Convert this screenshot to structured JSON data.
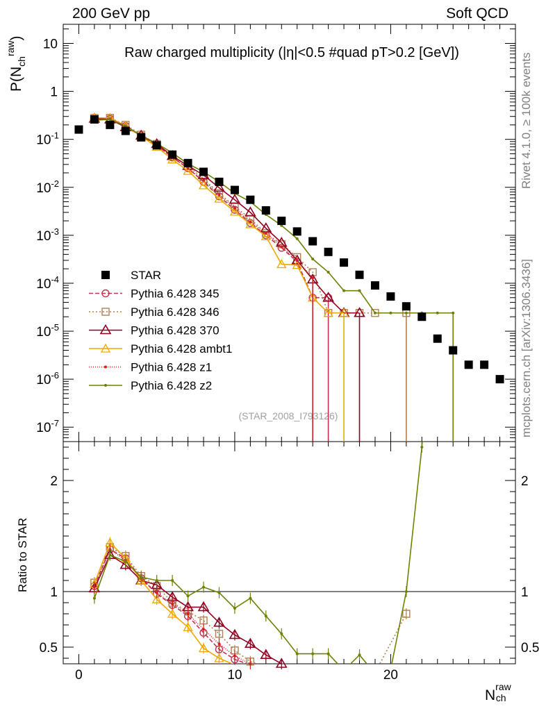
{
  "header": {
    "left": "200 GeV pp",
    "right": "Soft QCD"
  },
  "plot_title": "Raw charged multiplicity (|η|<0.5 #quad pT>0.2 [GeV])",
  "side_text": {
    "rivet": "Rivet 4.1.0, ≥ 100k events",
    "mcplots": "mcplots.cern.ch [arXiv:1306.3436]"
  },
  "watermark": "(STAR_2008_I793126)",
  "axis_labels": {
    "y_main_base": "P(N",
    "y_main_sup": "raw",
    "y_main_sub": "ch",
    "y_main_close": ")",
    "y_ratio": "Ratio to STAR",
    "x_base": "N",
    "x_sup": "raw",
    "x_sub": "ch"
  },
  "colors": {
    "star": "#000000",
    "p345": "#c03050",
    "p346": "#b08050",
    "p370": "#900020",
    "ambt1": "#f0a800",
    "z1": "#d02020",
    "z2": "#708000"
  },
  "chart_data": {
    "type": "scatter",
    "title": "Raw charged multiplicity (|η|<0.5 #quad pT>0.2 [GeV])",
    "xlabel": "N_ch^raw",
    "ylabel": "P(N_ch^raw)",
    "ratio_ylabel": "Ratio to STAR",
    "xlim": [
      -1,
      28
    ],
    "ylim": [
      5e-08,
      25
    ],
    "ratio_ylim": [
      0.35,
      2.35
    ],
    "yscale": "log",
    "legend_position": "left-middle",
    "x_ticks": [
      "0",
      "10",
      "20"
    ],
    "y_ticks": [
      "10",
      "1",
      "10^-1",
      "10^-2",
      "10^-3",
      "10^-4",
      "10^-5",
      "10^-6",
      "10^-7"
    ],
    "ratio_ticks": [
      "0.5",
      "1",
      "2"
    ],
    "star": {
      "name": "STAR",
      "x": [
        0,
        1,
        2,
        3,
        4,
        5,
        6,
        7,
        8,
        9,
        10,
        11,
        12,
        13,
        14,
        15,
        16,
        17,
        18,
        19,
        20,
        21,
        22,
        23,
        24,
        25,
        26,
        27
      ],
      "y": [
        0.16,
        0.26,
        0.2,
        0.15,
        0.11,
        0.075,
        0.048,
        0.032,
        0.021,
        0.013,
        0.0088,
        0.0055,
        0.0033,
        0.002,
        0.0012,
        0.00075,
        0.00045,
        0.00027,
        0.00015,
        9e-05,
        5.3e-05,
        3.3e-05,
        2e-05,
        7e-06,
        4e-06,
        2e-06,
        2e-06,
        1e-06
      ]
    },
    "series": [
      {
        "name": "Pythia 6.428 345",
        "key": "p345",
        "marker": "circle",
        "dash": "6,3",
        "x": [
          1,
          2,
          3,
          4,
          5,
          6,
          7,
          8,
          9,
          10,
          11,
          12,
          13,
          14,
          15,
          16
        ],
        "y": [
          0.27,
          0.27,
          0.19,
          0.12,
          0.075,
          0.042,
          0.025,
          0.013,
          0.0065,
          0.0034,
          0.0018,
          0.001,
          0.00055,
          0.00028,
          5e-05,
          5e-05
        ],
        "ratio": [
          1.05,
          1.38,
          1.3,
          1.12,
          0.98,
          0.88,
          0.78,
          0.63,
          0.48,
          0.39,
          0.34,
          0.3,
          0.27,
          0.24,
          0.07,
          0.11
        ]
      },
      {
        "name": "Pythia 6.428 346",
        "key": "p346",
        "marker": "square",
        "dash": "2,3",
        "x": [
          1,
          2,
          3,
          4,
          5,
          6,
          7,
          8,
          9,
          10,
          11,
          12,
          13,
          14,
          15,
          16,
          17,
          18,
          19,
          21
        ],
        "y": [
          0.28,
          0.28,
          0.2,
          0.125,
          0.08,
          0.045,
          0.028,
          0.015,
          0.0075,
          0.004,
          0.0022,
          0.0011,
          0.00065,
          0.00035,
          0.00017,
          2.4e-05,
          2.4e-05,
          2.4e-05,
          2.4e-05,
          2.4e-05
        ],
        "ratio": [
          1.08,
          1.4,
          1.32,
          1.14,
          1.05,
          0.9,
          0.82,
          0.74,
          0.62,
          0.47,
          0.37,
          0.32,
          0.28,
          0.27,
          0.24,
          0.06,
          0.09,
          0.16,
          0.27,
          0.8
        ]
      },
      {
        "name": "Pythia 6.428 370",
        "key": "p370",
        "marker": "triangle",
        "dash": "",
        "x": [
          1,
          2,
          3,
          4,
          5,
          6,
          7,
          8,
          9,
          10,
          11,
          12,
          13,
          14,
          15,
          16,
          17,
          18
        ],
        "y": [
          0.27,
          0.26,
          0.18,
          0.12,
          0.08,
          0.045,
          0.028,
          0.018,
          0.0098,
          0.0055,
          0.003,
          0.0014,
          0.0007,
          0.0003,
          0.00012,
          5e-05,
          2.4e-05,
          2.4e-05
        ],
        "ratio": [
          1.03,
          1.33,
          1.24,
          1.1,
          1.06,
          0.95,
          0.86,
          0.86,
          0.72,
          0.61,
          0.53,
          0.43,
          0.35,
          0.3,
          0.25,
          0.2,
          0.16,
          0.1
        ]
      },
      {
        "name": "Pythia 6.428 ambt1",
        "key": "ambt1",
        "marker": "triangle-open",
        "dash": "",
        "x": [
          1,
          2,
          3,
          4,
          5,
          6,
          7,
          8,
          9,
          10,
          11,
          12,
          13,
          14,
          15,
          16,
          17
        ],
        "y": [
          0.28,
          0.28,
          0.19,
          0.115,
          0.07,
          0.038,
          0.022,
          0.011,
          0.0058,
          0.0031,
          0.0017,
          0.00095,
          0.00025,
          0.00024,
          5e-05,
          2.4e-05,
          2.4e-05
        ],
        "ratio": [
          1.07,
          1.44,
          1.3,
          1.1,
          0.93,
          0.8,
          0.68,
          0.49,
          0.4,
          0.34,
          0.3,
          0.27,
          0.21,
          0.19,
          0.06,
          0.08,
          0.1
        ]
      },
      {
        "name": "Pythia 6.428 z1",
        "key": "z1",
        "marker": "dot",
        "dash": "1,2",
        "x": [
          1,
          2,
          3,
          4,
          5,
          6,
          7,
          8,
          9,
          10,
          11,
          12,
          13,
          14,
          15
        ],
        "y": [
          0.27,
          0.27,
          0.19,
          0.12,
          0.076,
          0.043,
          0.025,
          0.014,
          0.007,
          0.0037,
          0.0019,
          0.0011,
          0.00058,
          0.0003,
          0.00013
        ],
        "ratio": [
          1.04,
          1.38,
          1.28,
          1.12,
          0.99,
          0.89,
          0.8,
          0.66,
          0.53,
          0.42,
          0.35,
          0.31,
          0.28,
          0.25,
          0.2
        ]
      },
      {
        "name": "Pythia 6.428 z2",
        "key": "z2",
        "marker": "dot",
        "dash": "",
        "x": [
          1,
          2,
          3,
          4,
          5,
          6,
          7,
          8,
          9,
          10,
          11,
          12,
          13,
          14,
          15,
          16,
          17,
          18,
          19,
          20,
          21,
          22,
          23,
          24
        ],
        "y": [
          0.25,
          0.26,
          0.19,
          0.12,
          0.082,
          0.052,
          0.031,
          0.021,
          0.013,
          0.0075,
          0.005,
          0.0027,
          0.0016,
          0.00085,
          0.00032,
          0.00017,
          7e-05,
          7e-05,
          2.4e-05,
          2.4e-05,
          2.4e-05,
          2.4e-05,
          2.4e-05,
          2.4e-05
        ],
        "ratio": [
          0.94,
          1.33,
          1.27,
          1.13,
          1.1,
          1.1,
          0.96,
          1.04,
          0.99,
          0.85,
          0.94,
          0.78,
          0.62,
          0.44,
          0.44,
          0.44,
          0.29,
          0.43,
          0.26,
          0.3,
          1.0,
          2.3,
          4.0,
          6.0
        ]
      }
    ]
  }
}
